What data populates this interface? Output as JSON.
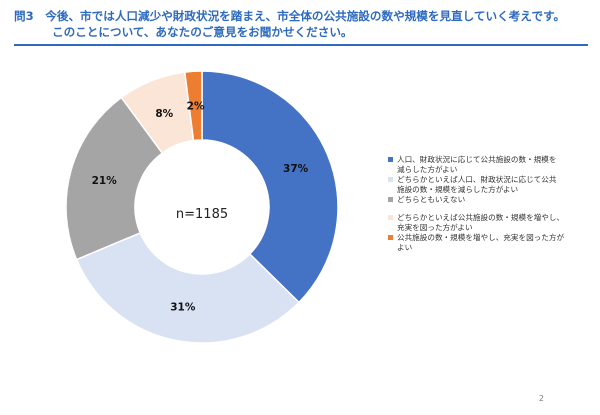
{
  "question": {
    "line1": "問3　今後、市では人口減少や財政状況を踏まえ、市全体の公共施設の数や規模を見直していく考えです。",
    "line2": "このことについて、あなたのご意見をお聞かせください。"
  },
  "page_number": "2",
  "chart_data": {
    "type": "pie",
    "donut": true,
    "center_label": "n=1185",
    "categories": [
      "人口、財政状況に応じて公共施設の数・規模を減らした方がよい",
      "どちらかといえば人口、財政状況に応じて公共施設の数・規模を減らした方がよい",
      "どちらともいえない",
      "どちらかといえば公共施設の数・規模を増やし、充実を図った方がよい",
      "公共施設の数・規模を増やし、充実を図った方がよい"
    ],
    "values": [
      37,
      31,
      21,
      8,
      2
    ],
    "labels": [
      "37%",
      "31%",
      "21%",
      "8%",
      "2%"
    ],
    "colors": [
      "#4472C4",
      "#D9E2F3",
      "#A5A5A5",
      "#FBE5D6",
      "#ED7D31"
    ],
    "legend_position": "right"
  },
  "legend": {
    "items": [
      {
        "line1": "人口、財政状況に応じて公共施設の数・規模を",
        "line2": "減らした方がよい"
      },
      {
        "line1": "どちらかといえば人口、財政状況に応じて公共",
        "line2": "施設の数・規模を減らした方がよい"
      },
      {
        "line1": "どちらともいえない",
        "line2": ""
      },
      {
        "line1": "どちらかといえば公共施設の数・規模を増やし、",
        "line2": "充実を図った方がよい"
      },
      {
        "line1": "公共施設の数・規模を増やし、充実を図った方が",
        "line2": "よい"
      }
    ]
  }
}
